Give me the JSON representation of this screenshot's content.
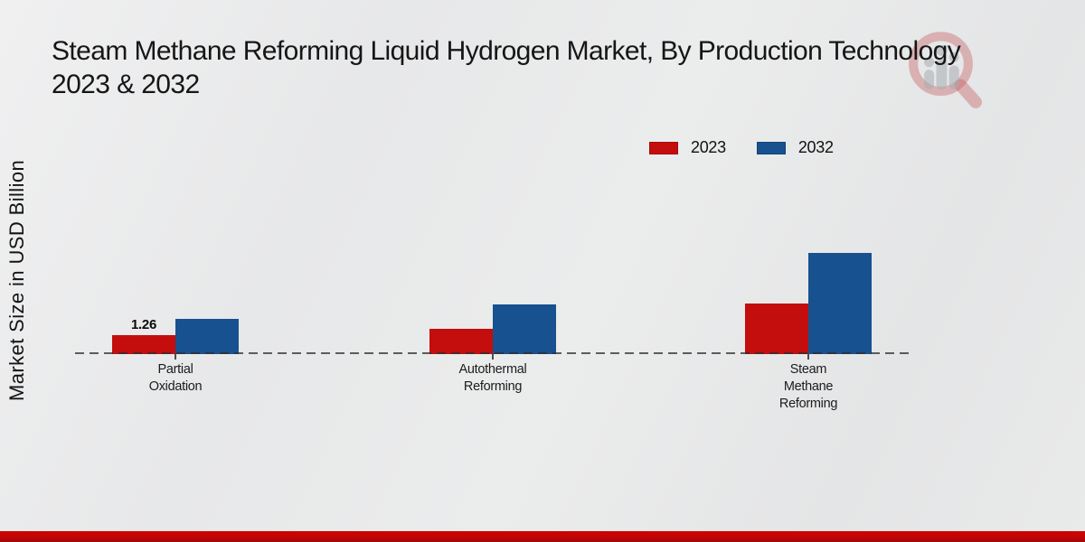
{
  "page": {
    "title_line1": "Steam Methane Reforming Liquid Hydrogen Market, By Production Technology",
    "title_line2": "2023 & 2032",
    "y_axis_label": "Market Size in USD Billion"
  },
  "colors": {
    "series_2023": "#c40d0d",
    "series_2032": "#17518f",
    "footer_band": "#c20404",
    "background": "#e9eaea",
    "axis_dash": "#555555",
    "watermark_red": "#c5575a",
    "watermark_gray": "#a9adb2"
  },
  "legend": {
    "items": [
      {
        "label": "2023",
        "color": "#c40d0d"
      },
      {
        "label": "2032",
        "color": "#17518f"
      }
    ]
  },
  "chart_data": {
    "type": "bar",
    "title": "Steam Methane Reforming Liquid Hydrogen Market, By Production Technology 2023 & 2032",
    "xlabel": "",
    "ylabel": "Market Size in USD Billion",
    "categories": [
      "Partial Oxidation",
      "Autothermal Reforming",
      "Steam Methane Reforming"
    ],
    "series": [
      {
        "name": "2023",
        "color": "#c40d0d",
        "values": [
          1.26,
          1.7,
          3.4
        ]
      },
      {
        "name": "2032",
        "color": "#17518f",
        "values": [
          2.4,
          3.35,
          6.85
        ]
      }
    ],
    "value_labels": [
      {
        "series": "2023",
        "category": "Partial Oxidation",
        "text": "1.26"
      }
    ],
    "ylim": [
      0,
      8
    ],
    "grid": false,
    "baseline_style": "dashed",
    "legend_position": "top-right"
  }
}
